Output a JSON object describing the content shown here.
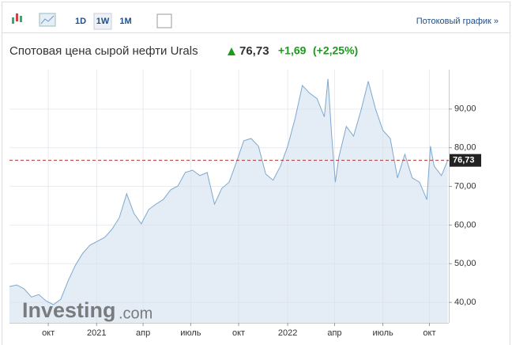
{
  "toolbar": {
    "buttons": [
      "1D",
      "1W",
      "1M"
    ],
    "link": "Потоковый график »"
  },
  "chart_data": {
    "type": "line",
    "title": "Спотовая цена сырой нефти Urals",
    "price": "76,73",
    "change": "+1,69",
    "change_pct": "(+2,25%)",
    "last_price": {
      "value": 76.73,
      "label": "76,73"
    },
    "watermark": [
      "Investing",
      ".com"
    ],
    "x": [
      0,
      2,
      4,
      6,
      8,
      10,
      12,
      14,
      16,
      18,
      20,
      22,
      24,
      26,
      28,
      30,
      32,
      34,
      36,
      38,
      40,
      42,
      44,
      46,
      48,
      50,
      52,
      54,
      56,
      58,
      60,
      62,
      64,
      66,
      68,
      70,
      72,
      74,
      76,
      78,
      80,
      82,
      84,
      86,
      87,
      88,
      89,
      90,
      92,
      94,
      96,
      98,
      100,
      102,
      104,
      106,
      108,
      110,
      112,
      114,
      115,
      116,
      118,
      119.7
    ],
    "series": [
      {
        "name": "Urals",
        "color": "#7ea8cf",
        "values": [
          44.1,
          44.5,
          43.5,
          41.4,
          42,
          40.4,
          39.4,
          40.8,
          45.5,
          49.6,
          52.7,
          54.8,
          55.8,
          56.8,
          58.9,
          61.9,
          68.1,
          63,
          60.3,
          64,
          65.4,
          66.6,
          69.1,
          70.1,
          73.6,
          74.2,
          72.8,
          73.6,
          65.4,
          69.5,
          71.1,
          76.3,
          81.8,
          82.4,
          80.4,
          73.2,
          71.6,
          75.2,
          80.4,
          87.5,
          96.1,
          94.1,
          92.7,
          88,
          97.8,
          83.4,
          71.1,
          77.7,
          85.5,
          83,
          89.6,
          97.2,
          90,
          84.5,
          82.4,
          72.2,
          78.3,
          72.2,
          71.1,
          66.6,
          80.4,
          75.2,
          72.8,
          76.73
        ]
      }
    ],
    "xlim": [
      0,
      120
    ],
    "xticks": [
      {
        "value": 10.6,
        "label": "окт"
      },
      {
        "value": 23.8,
        "label": "2021"
      },
      {
        "value": 36.5,
        "label": "апр"
      },
      {
        "value": 49.5,
        "label": "июль"
      },
      {
        "value": 62.6,
        "label": "окт"
      },
      {
        "value": 76,
        "label": "2022"
      },
      {
        "value": 88.8,
        "label": "апр"
      },
      {
        "value": 102,
        "label": "июль"
      },
      {
        "value": 114.7,
        "label": "окт"
      }
    ],
    "ylim": [
      34.7,
      100.2
    ],
    "yticks": [
      {
        "value": 40,
        "label": "40,00"
      },
      {
        "value": 50,
        "label": "50,00"
      },
      {
        "value": 60,
        "label": "60,00"
      },
      {
        "value": 70,
        "label": "70,00"
      },
      {
        "value": 80,
        "label": "80,00"
      },
      {
        "value": 90,
        "label": "90,00"
      }
    ],
    "grid": true
  }
}
